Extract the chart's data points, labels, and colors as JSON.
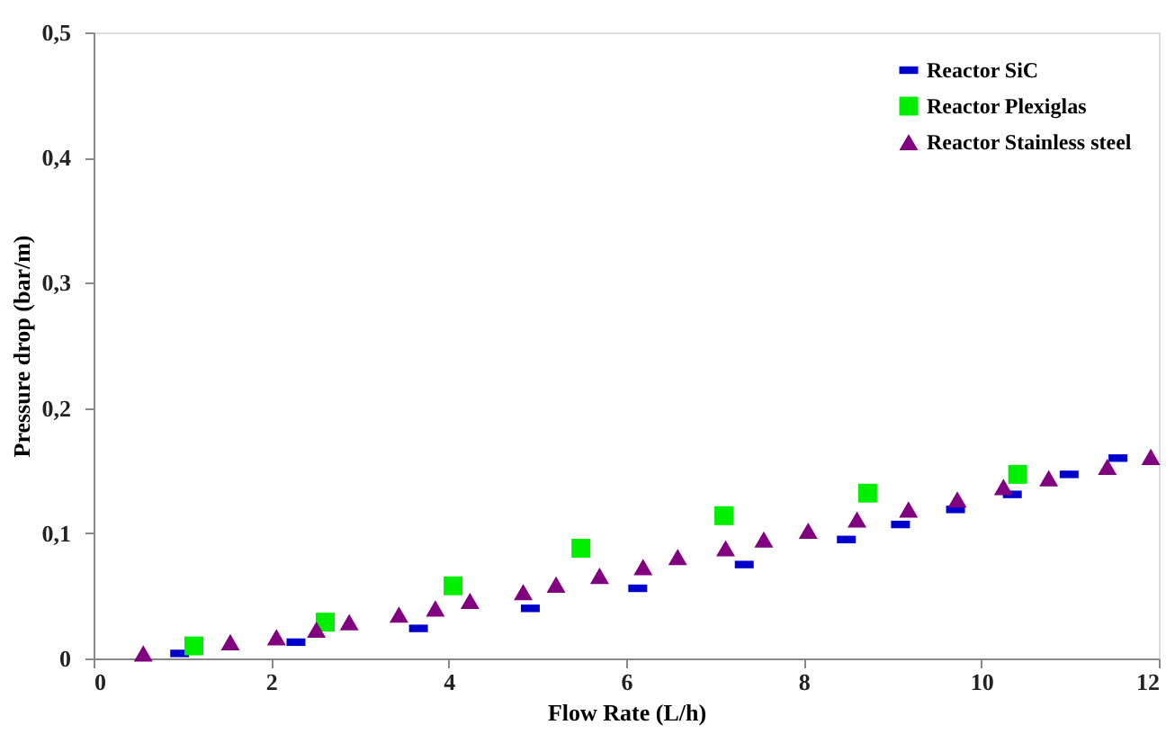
{
  "chart_data": {
    "type": "scatter",
    "xlabel": "Flow Rate (L/h)",
    "ylabel": "Pressure drop (bar/m)",
    "xlim": [
      0,
      12
    ],
    "xticks": [
      0,
      2,
      4,
      6,
      8,
      10,
      12
    ],
    "ylim": [
      0,
      0.5
    ],
    "yticks": [
      0,
      {
        "value": 0.1,
        "label": "0,1"
      },
      {
        "value": 0.2,
        "label": "0,2"
      },
      {
        "value": 0.3,
        "label": "0,3"
      },
      {
        "value": 0.4,
        "label": "0,4"
      },
      {
        "value": 0.5,
        "label": "0,5"
      }
    ],
    "grid": false,
    "legend": "top right",
    "series": [
      {
        "name": "Reactor SiC",
        "color": "#0000cc",
        "x": [
          0.97,
          2.28,
          3.66,
          4.92,
          6.13,
          7.33,
          8.48,
          9.09,
          9.71,
          10.35,
          10.99,
          11.54
        ],
        "values": [
          0.004,
          0.013,
          0.024,
          0.04,
          0.056,
          0.075,
          0.095,
          0.107,
          0.119,
          0.131,
          0.147,
          0.16
        ]
      },
      {
        "name": "Reactor Plexiglas",
        "color": "#00ee00",
        "marker": "square",
        "x": [
          1.13,
          2.61,
          4.05,
          5.49,
          7.1,
          8.72,
          10.41
        ],
        "values": [
          0.01,
          0.029,
          0.058,
          0.088,
          0.114,
          0.132,
          0.147
        ]
      },
      {
        "name": "Reactor Stainless steel",
        "color": "#800080",
        "marker": "triangle",
        "x": [
          0.56,
          1.54,
          2.06,
          2.51,
          2.88,
          3.44,
          3.85,
          4.24,
          4.84,
          5.21,
          5.7,
          6.19,
          6.58,
          7.12,
          7.55,
          8.05,
          8.6,
          9.18,
          9.73,
          10.25,
          10.76,
          11.42,
          11.91
        ],
        "values": [
          0.004,
          0.013,
          0.017,
          0.023,
          0.029,
          0.035,
          0.04,
          0.046,
          0.053,
          0.059,
          0.066,
          0.073,
          0.081,
          0.088,
          0.095,
          0.102,
          0.111,
          0.119,
          0.127,
          0.137,
          0.144,
          0.153,
          0.161
        ]
      }
    ]
  }
}
